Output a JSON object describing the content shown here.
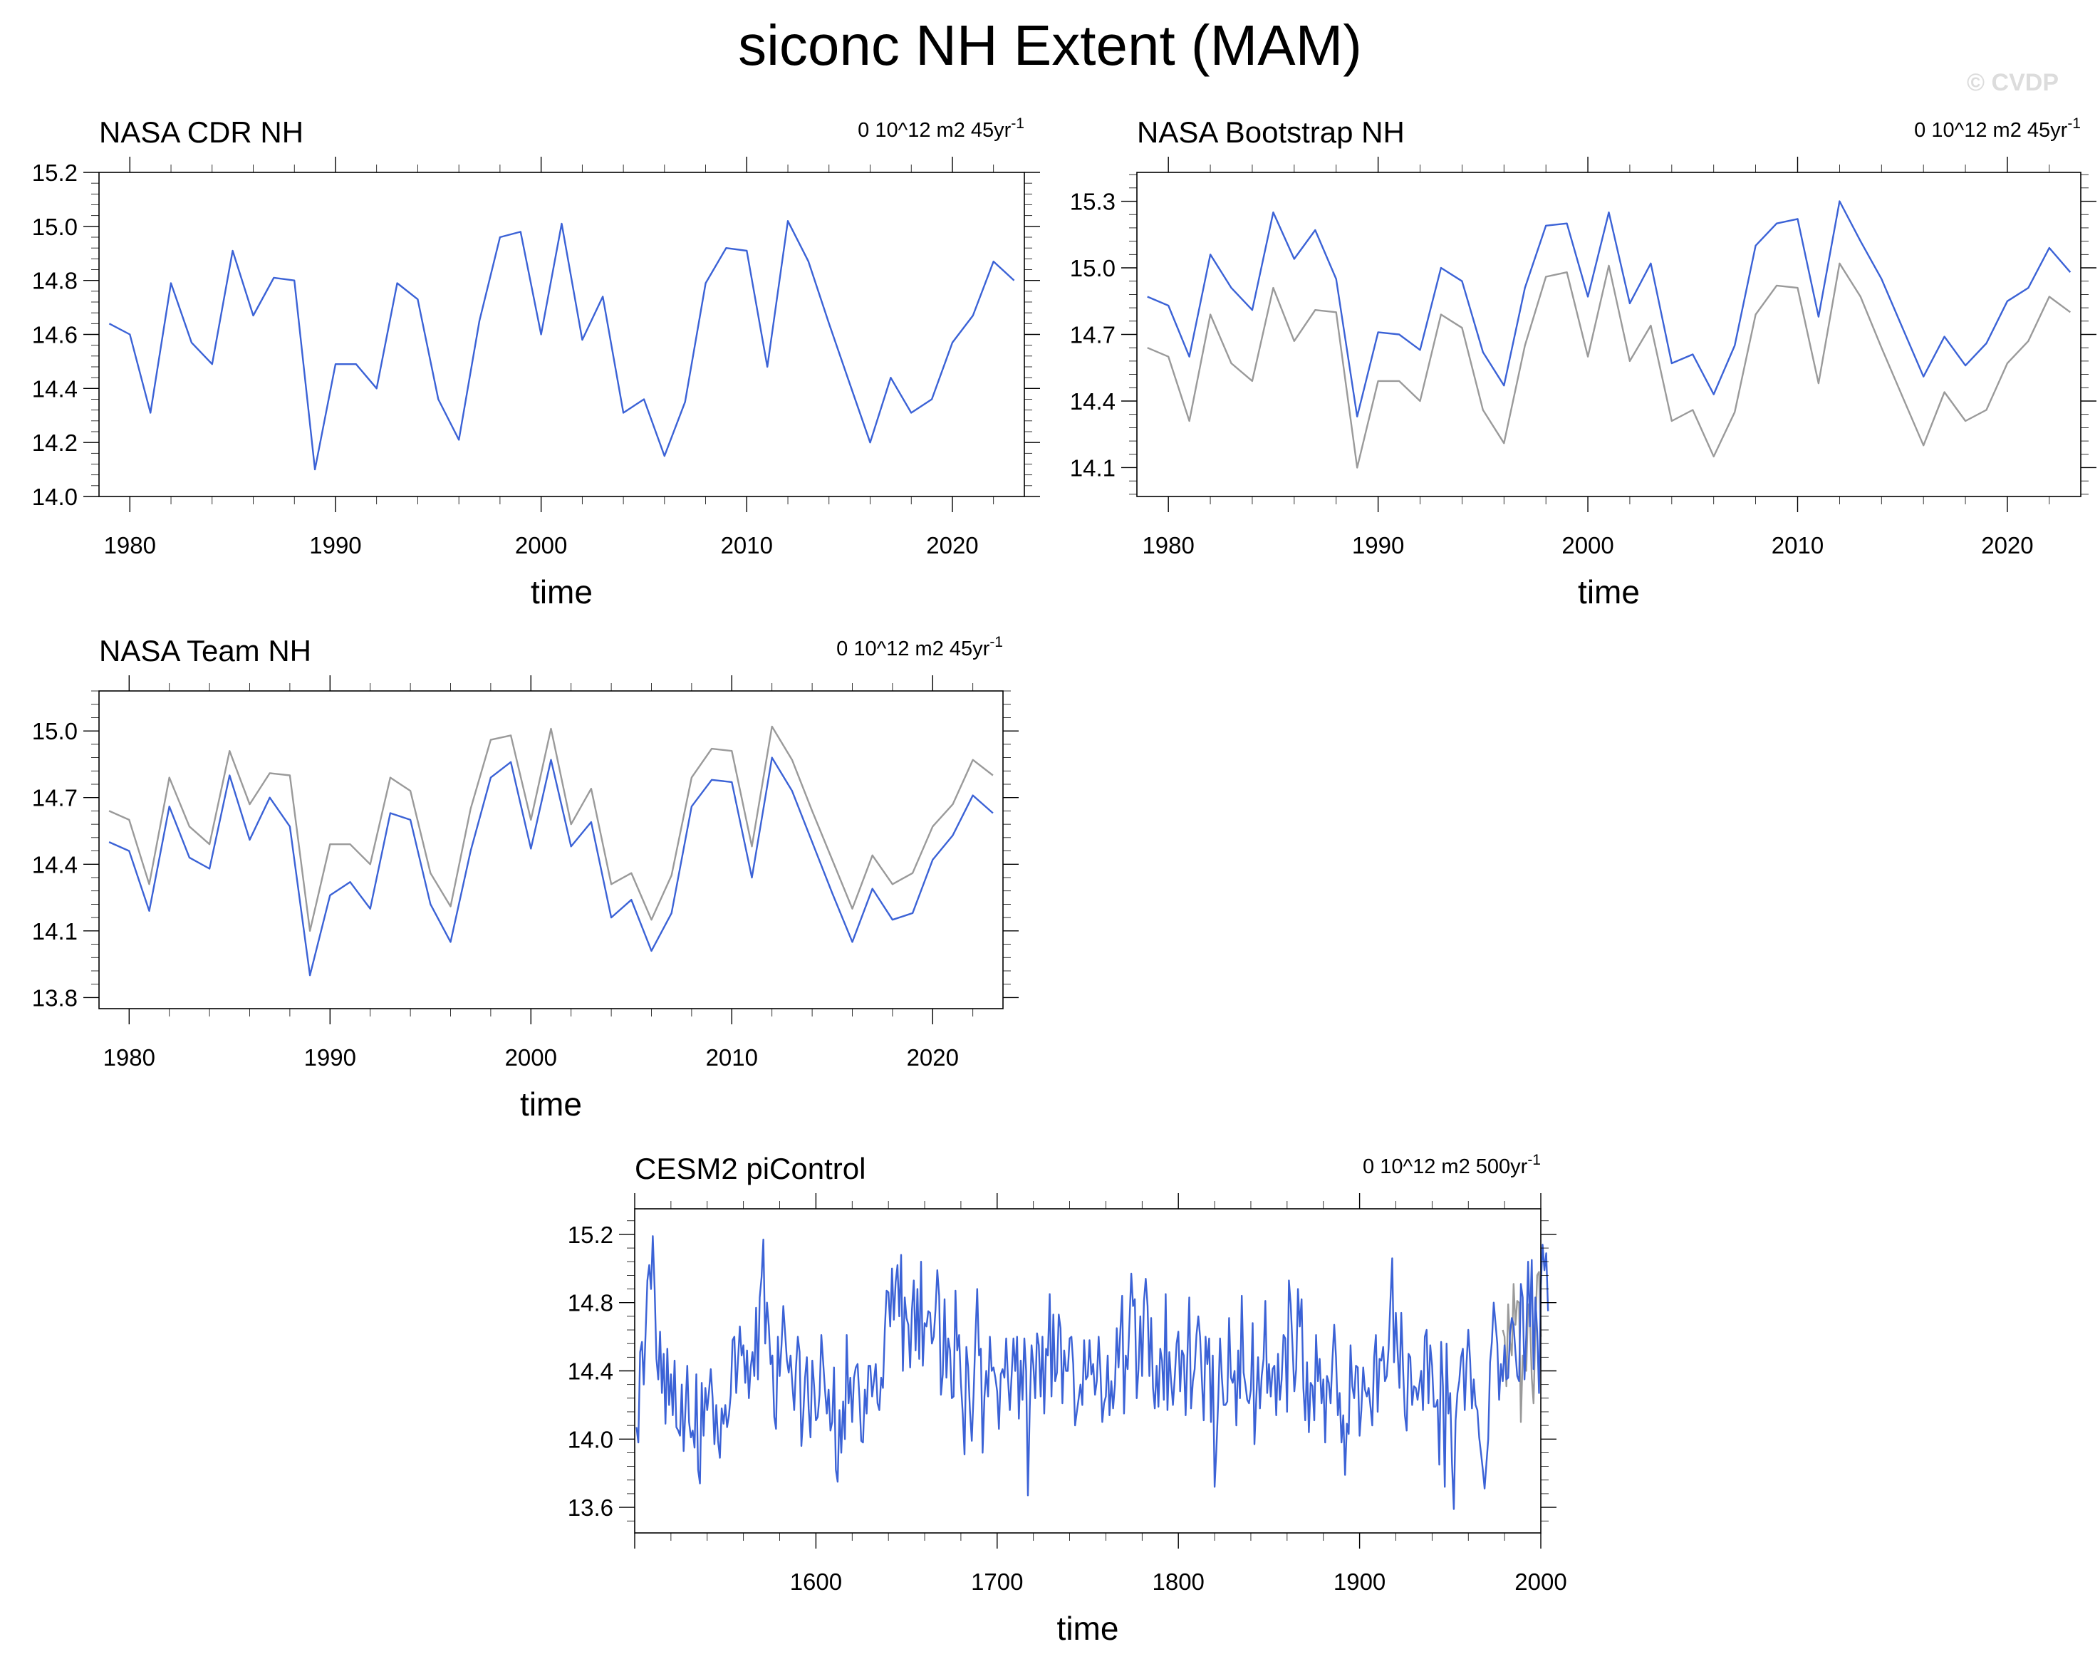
{
  "figure": {
    "title": "siconc NH Extent (MAM)",
    "credit": "© CVDP"
  },
  "colors": {
    "observed": "#3b62d6",
    "reference": "#9a9a9a",
    "axes": "#000000"
  },
  "chart_data": [
    {
      "type": "line",
      "title": "NASA CDR NH",
      "trend_label": {
        "value": "0",
        "units": "10^12 m2",
        "period": "45yr",
        "exponent": "-1"
      },
      "xlabel": "time",
      "xlim": [
        1978.5,
        2023.5
      ],
      "ylim": [
        14.0,
        15.2
      ],
      "yticks": [
        "14.0",
        "14.2",
        "14.4",
        "14.6",
        "14.8",
        "15.0",
        "15.2"
      ],
      "xticks": [
        "1980",
        "1990",
        "2000",
        "2010",
        "2020"
      ],
      "x_start": 1979,
      "series": [
        {
          "role": "primary",
          "values": [
            14.64,
            14.6,
            14.31,
            14.79,
            14.57,
            14.49,
            14.91,
            14.67,
            14.81,
            14.8,
            14.1,
            14.49,
            14.49,
            14.4,
            14.79,
            14.73,
            14.36,
            14.21,
            14.65,
            14.96,
            14.98,
            14.6,
            15.01,
            14.58,
            14.74,
            14.31,
            14.36,
            14.15,
            14.35,
            14.79,
            14.92,
            14.91,
            14.48,
            15.02,
            14.87,
            14.64,
            14.42,
            14.2,
            14.44,
            14.31,
            14.36,
            14.57,
            14.67,
            14.87,
            14.8
          ]
        }
      ]
    },
    {
      "type": "line",
      "title": "NASA Bootstrap NH",
      "trend_label": {
        "value": "0",
        "units": "10^12 m2",
        "period": "45yr",
        "exponent": "-1"
      },
      "xlabel": "time",
      "xlim": [
        1978.5,
        2023.5
      ],
      "ylim": [
        13.97,
        15.43
      ],
      "yticks": [
        "14.1",
        "14.4",
        "14.7",
        "15.0",
        "15.3"
      ],
      "xticks": [
        "1980",
        "1990",
        "2000",
        "2010",
        "2020"
      ],
      "x_start": 1979,
      "series": [
        {
          "role": "reference",
          "values": [
            14.64,
            14.6,
            14.31,
            14.79,
            14.57,
            14.49,
            14.91,
            14.67,
            14.81,
            14.8,
            14.1,
            14.49,
            14.49,
            14.4,
            14.79,
            14.73,
            14.36,
            14.21,
            14.65,
            14.96,
            14.98,
            14.6,
            15.01,
            14.58,
            14.74,
            14.31,
            14.36,
            14.15,
            14.35,
            14.79,
            14.92,
            14.91,
            14.48,
            15.02,
            14.87,
            14.64,
            14.42,
            14.2,
            14.44,
            14.31,
            14.36,
            14.57,
            14.67,
            14.87,
            14.8
          ]
        },
        {
          "role": "primary",
          "values": [
            14.87,
            14.83,
            14.6,
            15.06,
            14.91,
            14.81,
            15.25,
            15.04,
            15.17,
            14.95,
            14.33,
            14.71,
            14.7,
            14.63,
            15.0,
            14.94,
            14.62,
            14.47,
            14.91,
            15.19,
            15.2,
            14.87,
            15.25,
            14.84,
            15.02,
            14.57,
            14.61,
            14.43,
            14.65,
            15.1,
            15.2,
            15.22,
            14.78,
            15.3,
            15.12,
            14.95,
            14.73,
            14.51,
            14.69,
            14.56,
            14.66,
            14.85,
            14.91,
            15.09,
            14.98
          ]
        }
      ]
    },
    {
      "type": "line",
      "title": "NASA Team NH",
      "trend_label": {
        "value": "0",
        "units": "10^12 m2",
        "period": "45yr",
        "exponent": "-1"
      },
      "xlabel": "time",
      "xlim": [
        1978.5,
        2023.5
      ],
      "ylim": [
        13.75,
        15.18
      ],
      "yticks": [
        "13.8",
        "14.1",
        "14.4",
        "14.7",
        "15.0"
      ],
      "xticks": [
        "1980",
        "1990",
        "2000",
        "2010",
        "2020"
      ],
      "x_start": 1979,
      "series": [
        {
          "role": "reference",
          "values": [
            14.64,
            14.6,
            14.31,
            14.79,
            14.57,
            14.49,
            14.91,
            14.67,
            14.81,
            14.8,
            14.1,
            14.49,
            14.49,
            14.4,
            14.79,
            14.73,
            14.36,
            14.21,
            14.65,
            14.96,
            14.98,
            14.6,
            15.01,
            14.58,
            14.74,
            14.31,
            14.36,
            14.15,
            14.35,
            14.79,
            14.92,
            14.91,
            14.48,
            15.02,
            14.87,
            14.64,
            14.42,
            14.2,
            14.44,
            14.31,
            14.36,
            14.57,
            14.67,
            14.87,
            14.8
          ]
        },
        {
          "role": "primary",
          "values": [
            14.5,
            14.46,
            14.19,
            14.66,
            14.43,
            14.38,
            14.8,
            14.51,
            14.7,
            14.57,
            13.9,
            14.26,
            14.32,
            14.2,
            14.63,
            14.6,
            14.22,
            14.05,
            14.46,
            14.79,
            14.86,
            14.47,
            14.87,
            14.48,
            14.59,
            14.16,
            14.24,
            14.01,
            14.18,
            14.66,
            14.78,
            14.77,
            14.34,
            14.88,
            14.73,
            14.5,
            14.27,
            14.05,
            14.29,
            14.15,
            14.18,
            14.42,
            14.53,
            14.71,
            14.63
          ]
        }
      ]
    },
    {
      "type": "line",
      "title": "CESM2 piControl",
      "trend_label": {
        "value": "0",
        "units": "10^12 m2",
        "period": "500yr",
        "exponent": "-1"
      },
      "xlabel": "time",
      "xlim": [
        1500,
        2000
      ],
      "ylim": [
        13.45,
        15.35
      ],
      "yticks": [
        "13.6",
        "14.0",
        "14.4",
        "14.8",
        "15.2"
      ],
      "xticks": [
        "1600",
        "1700",
        "1800",
        "1900",
        "2000"
      ],
      "x_start": 1501,
      "series": [
        {
          "role": "reference",
          "x_start": 1979,
          "values": [
            14.64,
            14.6,
            14.31,
            14.79,
            14.57,
            14.49,
            14.91,
            14.67,
            14.81,
            14.8,
            14.1,
            14.49,
            14.49,
            14.4,
            14.79,
            14.73,
            14.36,
            14.21,
            14.65,
            14.96,
            14.98,
            14.6
          ]
        },
        {
          "role": "primary",
          "values": [
            14.07,
            13.98,
            14.51,
            14.57,
            14.32,
            14.62,
            14.93,
            15.02,
            14.88,
            15.19,
            14.88,
            14.47,
            14.35,
            14.63,
            14.27,
            14.5,
            14.09,
            14.53,
            14.2,
            14.38,
            14.14,
            14.46,
            14.07,
            14.05,
            14.02,
            14.32,
            13.93,
            14.17,
            14.43,
            14.1,
            14.01,
            14.05,
            13.95,
            14.38,
            13.82,
            13.74,
            14.33,
            14.02,
            14.3,
            14.17,
            14.28,
            14.41,
            14.24,
            13.97,
            14.2,
            13.99,
            13.89,
            14.18,
            14.09,
            14.2,
            14.07,
            14.14,
            14.26,
            14.58,
            14.6,
            14.27,
            14.46,
            14.66,
            14.49,
            14.55,
            14.33,
            14.52,
            14.24,
            14.42,
            14.51,
            14.37,
            14.77,
            14.35,
            14.83,
            14.95,
            15.17,
            14.56,
            14.8,
            14.66,
            14.44,
            14.49,
            14.13,
            14.06,
            14.6,
            14.37,
            14.55,
            14.78,
            14.62,
            14.46,
            14.39,
            14.49,
            14.32,
            14.17,
            14.42,
            14.6,
            14.51,
            13.96,
            14.14,
            14.36,
            14.48,
            14.18,
            14.01,
            14.46,
            14.31,
            14.11,
            14.13,
            14.26,
            14.61,
            14.45,
            14.29,
            14.15,
            14.29,
            14.05,
            14.1,
            14.42,
            13.82,
            13.75,
            14.17,
            13.92,
            14.22,
            14.0,
            14.61,
            14.21,
            14.36,
            14.1,
            14.36,
            14.42,
            14.44,
            14.24,
            13.99,
            13.98,
            14.29,
            14.15,
            14.43,
            14.43,
            14.25,
            14.34,
            14.44,
            14.21,
            14.17,
            14.36,
            14.3,
            14.64,
            14.87,
            14.86,
            14.66,
            15.0,
            14.7,
            14.92,
            15.02,
            14.72,
            15.08,
            14.4,
            14.83,
            14.71,
            14.67,
            14.42,
            14.76,
            14.93,
            14.52,
            14.88,
            14.47,
            15.04,
            14.43,
            14.68,
            14.66,
            14.75,
            14.74,
            14.56,
            14.6,
            14.76,
            14.99,
            14.84,
            14.26,
            14.38,
            14.82,
            14.36,
            14.59,
            14.52,
            14.24,
            14.25,
            14.87,
            14.52,
            14.61,
            14.33,
            14.15,
            13.91,
            14.54,
            14.42,
            14.17,
            13.99,
            14.26,
            14.6,
            14.88,
            14.49,
            14.53,
            13.92,
            14.25,
            14.4,
            14.25,
            14.6,
            14.4,
            14.42,
            14.36,
            14.28,
            14.06,
            14.38,
            14.41,
            14.36,
            14.59,
            14.35,
            14.17,
            14.38,
            14.59,
            14.4,
            14.6,
            14.12,
            14.46,
            14.23,
            14.59,
            14.4,
            13.67,
            14.18,
            14.55,
            14.43,
            14.24,
            14.62,
            14.55,
            14.25,
            14.6,
            14.15,
            14.53,
            14.49,
            14.85,
            14.25,
            14.73,
            14.34,
            14.39,
            14.73,
            14.65,
            14.21,
            14.52,
            14.4,
            14.4,
            14.59,
            14.6,
            14.44,
            14.08,
            14.16,
            14.24,
            14.32,
            14.2,
            14.58,
            14.35,
            14.37,
            14.58,
            14.38,
            14.44,
            14.26,
            14.34,
            14.6,
            14.4,
            14.1,
            14.21,
            14.25,
            14.49,
            14.14,
            14.34,
            14.18,
            14.32,
            14.65,
            14.42,
            14.64,
            14.84,
            14.15,
            14.49,
            14.41,
            14.68,
            14.97,
            14.78,
            14.82,
            14.24,
            14.41,
            14.72,
            14.37,
            14.81,
            14.94,
            14.78,
            14.37,
            14.71,
            14.3,
            14.18,
            14.43,
            14.19,
            14.53,
            14.46,
            14.23,
            14.85,
            14.17,
            14.51,
            14.34,
            14.2,
            14.36,
            14.56,
            14.63,
            14.28,
            14.52,
            14.49,
            14.14,
            14.49,
            14.83,
            14.18,
            14.34,
            14.41,
            14.61,
            14.72,
            14.6,
            14.34,
            14.11,
            14.6,
            14.44,
            14.59,
            14.1,
            14.49,
            13.72,
            13.94,
            14.23,
            14.59,
            14.36,
            14.2,
            14.2,
            14.22,
            14.71,
            14.36,
            14.33,
            14.4,
            14.08,
            14.52,
            14.24,
            14.84,
            14.39,
            14.32,
            14.23,
            14.21,
            14.29,
            14.68,
            13.97,
            14.24,
            14.48,
            14.18,
            14.37,
            14.47,
            14.81,
            14.27,
            14.44,
            14.25,
            14.41,
            14.43,
            14.14,
            14.5,
            14.23,
            14.35,
            14.61,
            14.59,
            14.16,
            14.93,
            14.79,
            14.54,
            14.28,
            14.41,
            14.88,
            14.66,
            14.82,
            14.3,
            14.11,
            14.45,
            14.04,
            14.33,
            14.31,
            14.11,
            14.61,
            14.34,
            14.47,
            14.21,
            14.35,
            13.98,
            14.37,
            14.33,
            14.21,
            14.46,
            14.67,
            14.48,
            14.14,
            14.27,
            13.98,
            14.14,
            13.79,
            14.09,
            14.03,
            14.55,
            14.31,
            14.24,
            14.43,
            14.42,
            14.02,
            14.17,
            14.42,
            14.29,
            14.25,
            14.3,
            14.19,
            14.08,
            14.48,
            14.61,
            14.16,
            14.47,
            14.46,
            14.54,
            14.34,
            14.37,
            14.53,
            14.8,
            15.06,
            14.45,
            14.74,
            14.51,
            14.3,
            14.74,
            14.41,
            14.14,
            14.05,
            14.5,
            14.48,
            14.2,
            14.31,
            14.3,
            14.23,
            14.32,
            14.4,
            14.17,
            14.6,
            14.64,
            14.21,
            14.55,
            14.43,
            14.19,
            14.19,
            14.23,
            13.85,
            14.57,
            14.31,
            13.72,
            14.56,
            14.15,
            14.27,
            13.86,
            13.59,
            14.11,
            14.27,
            14.34,
            14.48,
            14.53,
            14.17,
            14.44,
            14.64,
            14.46,
            14.18,
            14.35,
            14.2,
            14.17,
            14.01,
            13.92,
            13.82,
            13.71,
            13.86,
            14.0,
            14.45,
            14.57,
            14.8,
            14.68,
            14.56,
            14.23,
            14.44,
            14.34,
            14.55,
            14.35,
            14.36,
            14.62,
            14.71,
            14.67,
            14.51,
            14.37,
            14.34,
            14.91,
            14.83,
            14.35,
            14.61,
            15.04,
            14.66,
            15.05,
            14.41,
            14.83,
            14.63,
            14.27,
            14.9,
            15.14,
            14.99,
            15.09,
            14.75
          ]
        }
      ]
    }
  ]
}
